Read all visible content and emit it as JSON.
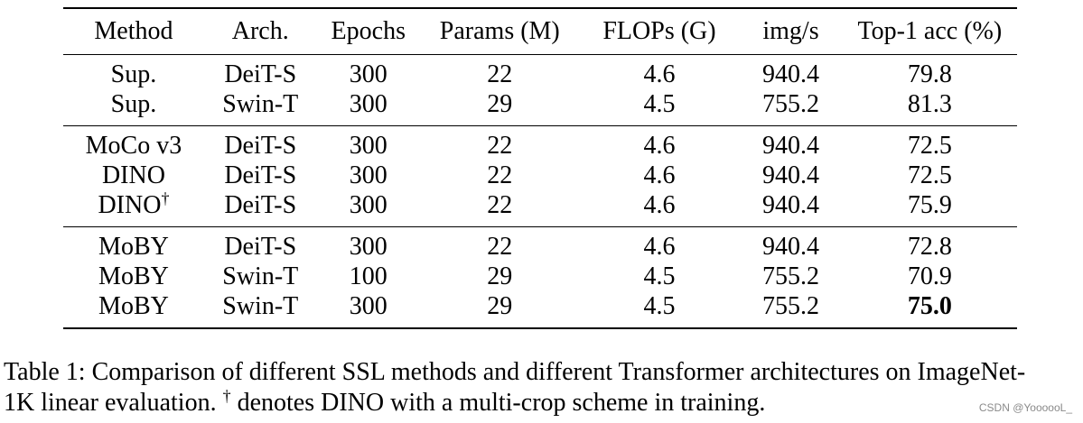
{
  "table": {
    "headers": [
      "Method",
      "Arch.",
      "Epochs",
      "Params (M)",
      "FLOPs (G)",
      "img/s",
      "Top-1 acc (%)"
    ],
    "groups": [
      [
        {
          "method": "Sup.",
          "dagger": "",
          "arch": "DeiT-S",
          "epochs": "300",
          "params": "22",
          "flops": "4.6",
          "imgs": "940.4",
          "acc": "79.8"
        },
        {
          "method": "Sup.",
          "dagger": "",
          "arch": "Swin-T",
          "epochs": "300",
          "params": "29",
          "flops": "4.5",
          "imgs": "755.2",
          "acc": "81.3"
        }
      ],
      [
        {
          "method": "MoCo v3",
          "dagger": "",
          "arch": "DeiT-S",
          "epochs": "300",
          "params": "22",
          "flops": "4.6",
          "imgs": "940.4",
          "acc": "72.5"
        },
        {
          "method": "DINO",
          "dagger": "",
          "arch": "DeiT-S",
          "epochs": "300",
          "params": "22",
          "flops": "4.6",
          "imgs": "940.4",
          "acc": "72.5"
        },
        {
          "method": "DINO",
          "dagger": "†",
          "arch": "DeiT-S",
          "epochs": "300",
          "params": "22",
          "flops": "4.6",
          "imgs": "940.4",
          "acc": "75.9"
        }
      ],
      [
        {
          "method": "MoBY",
          "dagger": "",
          "arch": "DeiT-S",
          "epochs": "300",
          "params": "22",
          "flops": "4.6",
          "imgs": "940.4",
          "acc": "72.8"
        },
        {
          "method": "MoBY",
          "dagger": "",
          "arch": "Swin-T",
          "epochs": "100",
          "params": "29",
          "flops": "4.5",
          "imgs": "755.2",
          "acc": "70.9"
        },
        {
          "method": "MoBY",
          "dagger": "",
          "arch": "Swin-T",
          "epochs": "300",
          "params": "29",
          "flops": "4.5",
          "imgs": "755.2",
          "acc": "75.0",
          "bold": true
        }
      ]
    ]
  },
  "caption": {
    "line1": "Table 1: Comparison of different SSL methods and different Transformer architectures on ImageNet-",
    "line2_prefix": "1K linear evaluation. ",
    "dagger": "†",
    "line2_suffix": " denotes DINO with a multi-crop scheme in training."
  },
  "watermark": "CSDN @YoooooL_"
}
